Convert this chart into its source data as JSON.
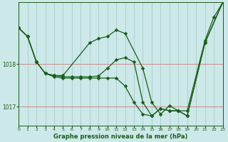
{
  "title": "Graphe pression niveau de la mer (hPa)",
  "background_color": "#cce8e8",
  "grid_color_v": "#aacccc",
  "grid_color_h": "#cc8888",
  "line_color": "#1a5c1a",
  "xlim": [
    0,
    23
  ],
  "ylim": [
    1016.55,
    1019.45
  ],
  "yticks": [
    1017,
    1018
  ],
  "xticks": [
    0,
    1,
    2,
    3,
    4,
    5,
    6,
    7,
    8,
    9,
    10,
    11,
    12,
    13,
    14,
    15,
    16,
    17,
    18,
    19,
    20,
    21,
    22,
    23
  ],
  "xA": [
    0,
    1,
    2,
    3,
    4,
    5,
    8,
    9,
    10,
    11,
    12,
    14,
    15,
    16,
    17,
    18,
    19,
    21,
    22,
    23
  ],
  "yA": [
    1018.85,
    1018.65,
    1018.05,
    1017.78,
    1017.73,
    1017.73,
    1018.5,
    1018.6,
    1018.65,
    1018.8,
    1018.72,
    1017.9,
    1017.1,
    1016.82,
    1017.02,
    1016.9,
    1016.9,
    1018.55,
    1019.1,
    1019.45
  ],
  "xB": [
    0,
    1,
    2,
    3,
    4,
    5,
    6,
    7,
    8,
    9,
    10,
    11,
    12,
    13,
    14,
    15,
    16,
    17,
    18,
    19,
    21,
    23
  ],
  "yB": [
    1018.85,
    1018.65,
    1018.05,
    1017.78,
    1017.73,
    1017.7,
    1017.7,
    1017.7,
    1017.7,
    1017.72,
    1017.9,
    1018.1,
    1018.15,
    1018.05,
    1017.1,
    1016.78,
    1016.95,
    1016.9,
    1016.9,
    1016.78,
    1018.5,
    1019.45
  ],
  "xC": [
    0,
    1,
    2,
    3,
    4,
    5,
    6,
    7,
    8,
    9,
    10,
    11,
    12,
    13,
    14,
    15,
    16,
    17,
    18,
    19,
    21,
    23
  ],
  "yC": [
    1018.85,
    1018.65,
    1018.05,
    1017.78,
    1017.7,
    1017.67,
    1017.67,
    1017.67,
    1017.67,
    1017.67,
    1017.67,
    1017.67,
    1017.48,
    1017.1,
    1016.82,
    1016.78,
    1016.95,
    1016.9,
    1016.9,
    1016.78,
    1018.5,
    1019.45
  ]
}
